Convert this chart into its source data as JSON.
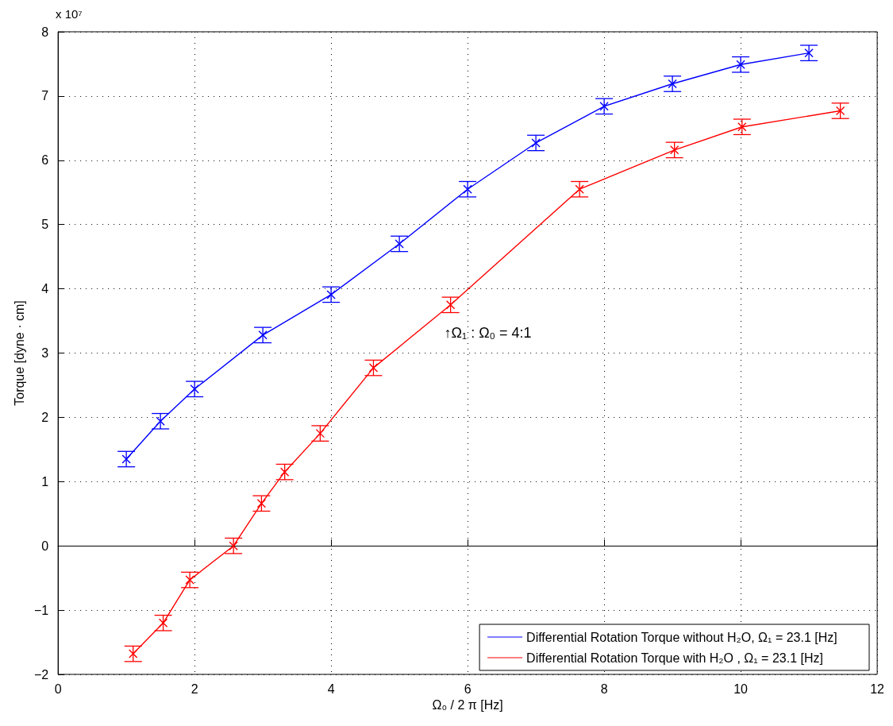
{
  "chart_data": {
    "type": "line",
    "xlabel": "Ω₀ / 2 π [Hz]",
    "ylabel": "Torque [dyne · cm]",
    "annotations": [
      "x 10⁷",
      {
        "text": "↑Ω₁ : Ω₀ = 4:1",
        "x": 5.75,
        "y": 3.75
      }
    ],
    "xlim": [
      0,
      12
    ],
    "xticks": [
      0,
      2,
      4,
      6,
      8,
      10,
      12
    ],
    "ylim": [
      -2,
      8
    ],
    "yticks": [
      -2,
      -1,
      0,
      1,
      2,
      3,
      4,
      5,
      6,
      7,
      8
    ],
    "grid": true,
    "legend": "bottom right",
    "marker": "cross",
    "line_style": "solid",
    "series": [
      {
        "name": "Differential Rotation Torque without H₂O, Ω₁ = 23.1 [Hz]",
        "color": "#0000ff",
        "x": [
          1,
          1.5,
          2,
          3,
          4,
          5,
          6,
          7,
          8,
          9,
          10,
          11
        ],
        "values": [
          1.35,
          1.94,
          2.44,
          3.28,
          3.91,
          4.7,
          5.55,
          6.27,
          6.84,
          7.19,
          7.49,
          7.67
        ],
        "errors": [
          0.12,
          0.12,
          0.12,
          0.12,
          0.12,
          0.12,
          0.12,
          0.12,
          0.12,
          0.12,
          0.12,
          0.12
        ]
      },
      {
        "name": "Differential Rotation Torque with H₂O , Ω₁ = 23.1 [Hz]",
        "color": "#ff0000",
        "x": [
          1.1,
          1.54,
          1.93,
          2.57,
          2.98,
          3.32,
          3.84,
          4.62,
          5.75,
          7.64,
          9.03,
          10.02,
          11.46
        ],
        "values": [
          -1.68,
          -1.2,
          -0.53,
          0,
          0.66,
          1.15,
          1.75,
          2.77,
          3.75,
          5.55,
          6.16,
          6.52,
          6.77
        ],
        "errors": [
          0.12,
          0.12,
          0.12,
          0.12,
          0.12,
          0.12,
          0.12,
          0.12,
          0.12,
          0.12,
          0.12,
          0.12,
          0.12
        ]
      }
    ]
  }
}
